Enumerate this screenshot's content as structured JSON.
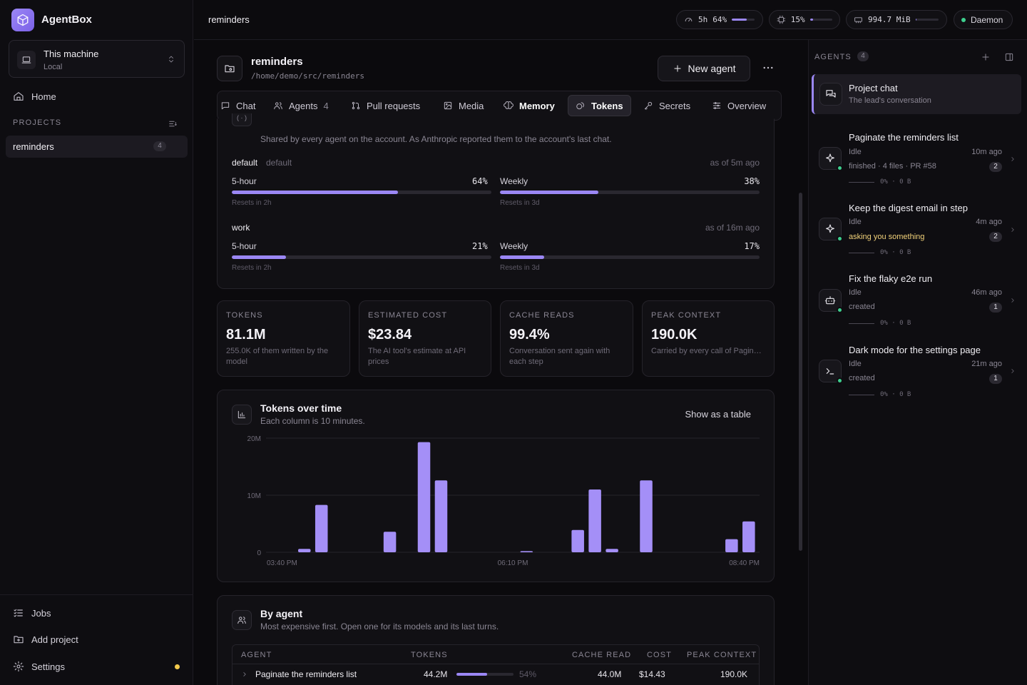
{
  "app": {
    "name": "AgentBox"
  },
  "sidebar": {
    "machine": {
      "name": "This machine",
      "sub": "Local"
    },
    "home": "Home",
    "projects_label": "PROJECTS",
    "projects": [
      {
        "name": "reminders",
        "count": "4"
      }
    ],
    "jobs": "Jobs",
    "add_project": "Add project",
    "settings": "Settings"
  },
  "topbar": {
    "breadcrumb": "reminders",
    "usage": {
      "label": "5h",
      "percent_text": "64%",
      "fraction": 0.64
    },
    "cpu": {
      "percent_text": "15%",
      "fraction": 0.15
    },
    "mem": {
      "text": "994.7 MiB",
      "fraction": 0.05
    },
    "daemon": "Daemon"
  },
  "project": {
    "title": "reminders",
    "path": "/home/demo/src/reminders",
    "new_agent": "New agent"
  },
  "tabs": [
    {
      "label": "Chat",
      "icon": "chat-icon"
    },
    {
      "label": "Agents",
      "count": "4",
      "icon": "users-icon"
    },
    {
      "label": "Pull requests",
      "icon": "git-pull-icon"
    },
    {
      "label": "Media",
      "icon": "image-icon"
    },
    {
      "label": "Memory",
      "icon": "brain-icon"
    },
    {
      "label": "Tokens",
      "icon": "coins-icon",
      "active": true
    },
    {
      "label": "Secrets",
      "icon": "key-icon"
    },
    {
      "label": "Overview",
      "icon": "sliders-icon"
    }
  ],
  "limits": {
    "note": "Shared by every agent on the account. As Anthropic reported them to the account's last chat.",
    "accounts": [
      {
        "name": "default",
        "tag": "default",
        "asof": "as of 5m ago",
        "five_hour": {
          "label": "5-hour",
          "pct": "64%",
          "fraction": 0.64,
          "reset": "Resets in 2h"
        },
        "weekly": {
          "label": "Weekly",
          "pct": "38%",
          "fraction": 0.38,
          "reset": "Resets in 3d"
        }
      },
      {
        "name": "work",
        "tag": "",
        "asof": "as of 16m ago",
        "five_hour": {
          "label": "5-hour",
          "pct": "21%",
          "fraction": 0.21,
          "reset": "Resets in 2h"
        },
        "weekly": {
          "label": "Weekly",
          "pct": "17%",
          "fraction": 0.17,
          "reset": "Resets in 3d"
        }
      }
    ]
  },
  "stats": [
    {
      "label": "TOKENS",
      "value": "81.1M",
      "desc": "255.0K of them written by the model"
    },
    {
      "label": "ESTIMATED COST",
      "value": "$23.84",
      "desc": "The AI tool's estimate at API prices"
    },
    {
      "label": "CACHE READS",
      "value": "99.4%",
      "desc": "Conversation sent again with each step"
    },
    {
      "label": "PEAK CONTEXT",
      "value": "190.0K",
      "desc": "Carried by every call of Paginate the reminders list'..."
    }
  ],
  "chart_card": {
    "title": "Tokens over time",
    "subtitle": "Each column is 10 minutes.",
    "toggle": "Show as a table"
  },
  "chart_data": {
    "type": "bar",
    "yticks": [
      "20M",
      "10M",
      "0"
    ],
    "ylim": [
      0,
      20
    ],
    "xticks": [
      "03:40 PM",
      "06:10 PM",
      "08:40 PM"
    ],
    "unit": "M tokens",
    "values": [
      0.6,
      8.3,
      0,
      0,
      0,
      3.6,
      0,
      19.3,
      12.6,
      0,
      0,
      0,
      0,
      0.2,
      0,
      0,
      3.9,
      11.0,
      0.6,
      0,
      12.6,
      0,
      0,
      0,
      0,
      2.3,
      5.4
    ]
  },
  "by_agent": {
    "title": "By agent",
    "subtitle": "Most expensive first. Open one for its models and its last turns.",
    "columns": [
      "AGENT",
      "TOKENS",
      "CACHE READ",
      "COST",
      "PEAK CONTEXT"
    ],
    "rows": [
      {
        "agent": "Paginate the reminders list",
        "tokens": "44.2M",
        "share": "54%",
        "fraction": 0.54,
        "cache_read": "44.0M",
        "cost": "$14.43",
        "peak": "190.0K"
      }
    ]
  },
  "agents_panel": {
    "label": "AGENTS",
    "count": "4",
    "project_chat": {
      "title": "Project chat",
      "sub": "The lead's conversation"
    },
    "items": [
      {
        "title": "Paginate the reminders list",
        "status": "Idle",
        "ago": "10m ago",
        "note": "finished · 4 files · PR #58",
        "badge": "2",
        "foot": "0% · 0 B",
        "icon": "sparkle-icon"
      },
      {
        "title": "Keep the digest email in step",
        "status": "Idle",
        "ago": "4m ago",
        "note": "asking you something",
        "badge": "2",
        "foot": "0% · 0 B",
        "icon": "sparkle-icon",
        "note_color": "#f2d27a"
      },
      {
        "title": "Fix the flaky e2e run",
        "status": "Idle",
        "ago": "46m ago",
        "note": "created",
        "badge": "1",
        "foot": "0% · 0 B",
        "icon": "bot-icon"
      },
      {
        "title": "Dark mode for the settings page",
        "status": "Idle",
        "ago": "21m ago",
        "note": "created",
        "badge": "1",
        "foot": "0% · 0 B",
        "icon": "terminal-icon"
      }
    ]
  },
  "colors": {
    "accent": "#9b87f5",
    "status_ok": "#3ecf8e",
    "warn": "#f2d27a"
  }
}
